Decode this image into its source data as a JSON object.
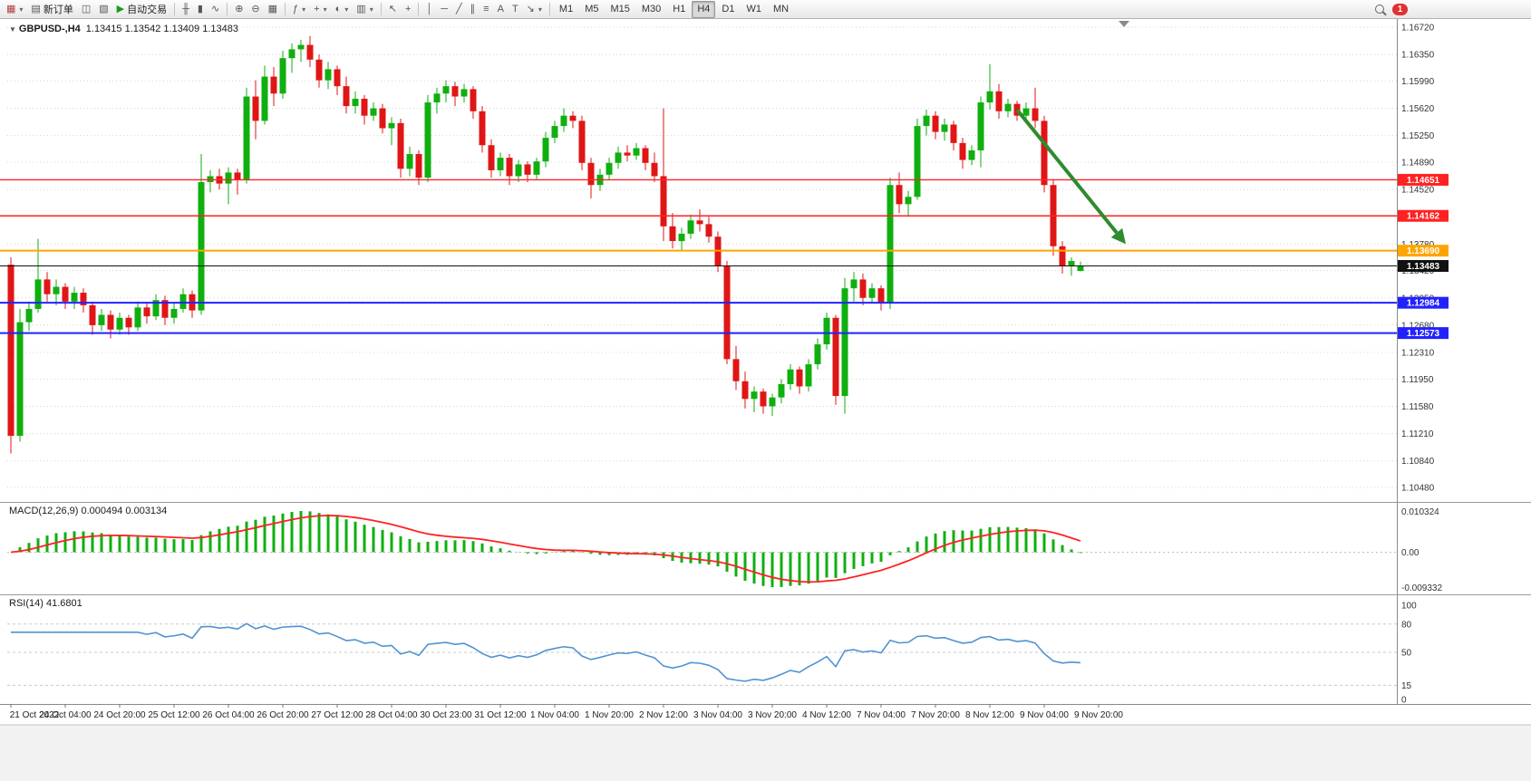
{
  "toolbar": {
    "buttons": [
      {
        "name": "new-chart",
        "glyph": "▦",
        "glyph_color": "#b04040",
        "dropdown": true
      },
      {
        "name": "new-order",
        "glyph": "▤",
        "label": "新订单"
      },
      {
        "name": "charts-list",
        "glyph": "◫"
      },
      {
        "name": "profiles",
        "glyph": "▧"
      },
      {
        "name": "auto-trading",
        "glyph": "▶",
        "glyph_color": "#1a9a1a",
        "label": "自动交易"
      },
      {
        "sep": true
      },
      {
        "name": "bar-chart-type",
        "glyph": "╫"
      },
      {
        "name": "candlestick-type",
        "glyph": "▮"
      },
      {
        "name": "line-chart-type",
        "glyph": "∿"
      },
      {
        "sep": true
      },
      {
        "name": "zoom-in",
        "glyph": "⊕"
      },
      {
        "name": "zoom-out",
        "glyph": "⊖"
      },
      {
        "name": "tile-windows",
        "glyph": "▦"
      },
      {
        "sep": true
      },
      {
        "name": "indicators",
        "glyph": "ƒ",
        "dropdown": true
      },
      {
        "name": "add-indicator",
        "glyph": "+",
        "dropdown": true
      },
      {
        "name": "periods",
        "glyph": "◐",
        "dropdown": true
      },
      {
        "name": "templates",
        "glyph": "▥",
        "dropdown": true
      },
      {
        "sep": true
      },
      {
        "name": "cursor",
        "glyph": "↖"
      },
      {
        "name": "crosshair",
        "glyph": "+"
      },
      {
        "sep": true
      },
      {
        "name": "vertical-line-tool",
        "glyph": "│"
      },
      {
        "name": "horizontal-line-tool",
        "glyph": "─"
      },
      {
        "name": "trendline-tool",
        "glyph": "╱"
      },
      {
        "name": "channel-tool",
        "glyph": "∥"
      },
      {
        "name": "fibonacci-tool",
        "glyph": "≡"
      },
      {
        "name": "text-tool",
        "glyph": "A"
      },
      {
        "name": "label-tool",
        "glyph": "T"
      },
      {
        "name": "arrows-tool",
        "glyph": "↘",
        "dropdown": true
      },
      {
        "sep": true
      }
    ],
    "timeframes": [
      "M1",
      "M5",
      "M15",
      "M30",
      "H1",
      "H4",
      "D1",
      "W1",
      "MN"
    ],
    "active_timeframe": "H4",
    "notification_badge": "1"
  },
  "chart": {
    "symbol_label": "GBPUSD-,H4",
    "ohlc_label": "1.13415 1.13542 1.13409 1.13483"
  },
  "colors": {
    "bull": "#0faf0f",
    "bear": "#e01616",
    "grid": "#d4d4d4",
    "price_line": "#111111",
    "macd_hist": "#0faf0f",
    "macd_signal": "#ff2222",
    "rsi_line": "#4f93d2",
    "arrow": "#2e8b2e"
  },
  "price_scale": [
    "1.16720",
    "1.16350",
    "1.15990",
    "1.15620",
    "1.15250",
    "1.14890",
    "1.14520",
    "1.14160",
    "1.13780",
    "1.13420",
    "1.13050",
    "1.12680",
    "1.12310",
    "1.11950",
    "1.11580",
    "1.11210",
    "1.10840",
    "1.10480"
  ],
  "levels": [
    {
      "name": "resistance-line-1",
      "price": 1.14651,
      "label": "1.14651",
      "color": "#ff2222",
      "width": 1.4
    },
    {
      "name": "resistance-line-2",
      "price": 1.14162,
      "label": "1.14162",
      "color": "#ff2222",
      "width": 1.4
    },
    {
      "name": "pivot-line",
      "price": 1.1369,
      "label": "1.13690",
      "color": "#ffa500",
      "width": 2
    },
    {
      "name": "current-price-line",
      "price": 1.13483,
      "label": "1.13483",
      "color": "#111111",
      "width": 1
    },
    {
      "name": "support-line-1",
      "price": 1.12984,
      "label": "1.12984",
      "color": "#2222ff",
      "width": 2
    },
    {
      "name": "support-line-2",
      "price": 1.12573,
      "label": "1.12573",
      "color": "#2222ff",
      "width": 2
    }
  ],
  "arrow_annotation": {
    "from_index": 111,
    "from_price": 1.156,
    "to_index": 123,
    "to_price": 1.1378
  },
  "macd_panel": {
    "label": "MACD(12,26,9) 0.000494 0.003134",
    "scale_top": "0.010324",
    "scale_mid": "0.00",
    "scale_bottom": "-0.009332",
    "params": [
      12,
      26,
      9
    ]
  },
  "rsi_panel": {
    "label": "RSI(14) 41.6801",
    "scale": [
      "100",
      "80",
      "50",
      "15",
      "0"
    ],
    "levels": [
      80,
      50,
      15
    ],
    "params": [
      14
    ]
  },
  "time_axis": [
    "21 Oct 2022",
    "24 Oct 04:00",
    "24 Oct 20:00",
    "25 Oct 12:00",
    "26 Oct 04:00",
    "26 Oct 20:00",
    "27 Oct 12:00",
    "28 Oct 04:00",
    "30 Oct 23:00",
    "31 Oct 12:00",
    "1 Nov 04:00",
    "1 Nov 20:00",
    "2 Nov 12:00",
    "3 Nov 04:00",
    "3 Nov 20:00",
    "4 Nov 12:00",
    "7 Nov 04:00",
    "7 Nov 20:00",
    "8 Nov 12:00",
    "9 Nov 04:00",
    "9 Nov 20:00"
  ],
  "chart_data": {
    "type": "candlestick",
    "symbol": "GBPUSD",
    "timeframe": "H4",
    "indicators": [
      {
        "name": "MACD",
        "params": [
          12,
          26,
          9
        ]
      },
      {
        "name": "RSI",
        "params": [
          14
        ]
      }
    ],
    "candles": [
      [
        1.135,
        1.136,
        1.1094,
        1.1118
      ],
      [
        1.1118,
        1.129,
        1.111,
        1.1272
      ],
      [
        1.1272,
        1.13,
        1.126,
        1.129
      ],
      [
        1.129,
        1.1385,
        1.1285,
        1.133
      ],
      [
        1.133,
        1.134,
        1.13,
        1.131
      ],
      [
        1.131,
        1.133,
        1.1295,
        1.132
      ],
      [
        1.132,
        1.1325,
        1.129,
        1.13
      ],
      [
        1.13,
        1.132,
        1.129,
        1.1312
      ],
      [
        1.1312,
        1.1318,
        1.1285,
        1.1295
      ],
      [
        1.1295,
        1.13,
        1.1255,
        1.1268
      ],
      [
        1.1268,
        1.129,
        1.126,
        1.1282
      ],
      [
        1.1282,
        1.1288,
        1.125,
        1.1262
      ],
      [
        1.1262,
        1.1285,
        1.1255,
        1.1278
      ],
      [
        1.1278,
        1.1282,
        1.1255,
        1.1265
      ],
      [
        1.1265,
        1.13,
        1.126,
        1.1292
      ],
      [
        1.1292,
        1.1298,
        1.127,
        1.128
      ],
      [
        1.128,
        1.131,
        1.1275,
        1.1302
      ],
      [
        1.1302,
        1.1308,
        1.1268,
        1.1278
      ],
      [
        1.1278,
        1.1298,
        1.127,
        1.129
      ],
      [
        1.129,
        1.1318,
        1.1285,
        1.131
      ],
      [
        1.131,
        1.1315,
        1.1278,
        1.1288
      ],
      [
        1.1288,
        1.15,
        1.1282,
        1.1462
      ],
      [
        1.1462,
        1.1478,
        1.1448,
        1.147
      ],
      [
        1.147,
        1.148,
        1.1452,
        1.146
      ],
      [
        1.146,
        1.1482,
        1.1432,
        1.1475
      ],
      [
        1.1475,
        1.148,
        1.1445,
        1.1465
      ],
      [
        1.1465,
        1.159,
        1.146,
        1.1578
      ],
      [
        1.1578,
        1.16,
        1.152,
        1.1545
      ],
      [
        1.1545,
        1.162,
        1.154,
        1.1605
      ],
      [
        1.1605,
        1.1618,
        1.1565,
        1.1582
      ],
      [
        1.1582,
        1.164,
        1.1575,
        1.163
      ],
      [
        1.163,
        1.165,
        1.161,
        1.1642
      ],
      [
        1.1642,
        1.1655,
        1.1625,
        1.1648
      ],
      [
        1.1648,
        1.166,
        1.1618,
        1.1628
      ],
      [
        1.1628,
        1.1635,
        1.159,
        1.16
      ],
      [
        1.16,
        1.1625,
        1.1588,
        1.1615
      ],
      [
        1.1615,
        1.162,
        1.158,
        1.1592
      ],
      [
        1.1592,
        1.1605,
        1.1555,
        1.1565
      ],
      [
        1.1565,
        1.1585,
        1.1555,
        1.1575
      ],
      [
        1.1575,
        1.158,
        1.154,
        1.1552
      ],
      [
        1.1552,
        1.157,
        1.1545,
        1.1562
      ],
      [
        1.1562,
        1.1568,
        1.1528,
        1.1535
      ],
      [
        1.1535,
        1.155,
        1.1512,
        1.1542
      ],
      [
        1.1542,
        1.1548,
        1.1468,
        1.148
      ],
      [
        1.148,
        1.151,
        1.147,
        1.15
      ],
      [
        1.15,
        1.1505,
        1.1458,
        1.1468
      ],
      [
        1.1468,
        1.158,
        1.1462,
        1.157
      ],
      [
        1.157,
        1.159,
        1.1555,
        1.1582
      ],
      [
        1.1582,
        1.16,
        1.157,
        1.1592
      ],
      [
        1.1592,
        1.1598,
        1.1565,
        1.1578
      ],
      [
        1.1578,
        1.1595,
        1.157,
        1.1588
      ],
      [
        1.1588,
        1.1592,
        1.1548,
        1.1558
      ],
      [
        1.1558,
        1.1565,
        1.1502,
        1.1512
      ],
      [
        1.1512,
        1.152,
        1.1468,
        1.1478
      ],
      [
        1.1478,
        1.1502,
        1.147,
        1.1495
      ],
      [
        1.1495,
        1.15,
        1.1458,
        1.147
      ],
      [
        1.147,
        1.1492,
        1.1462,
        1.1486
      ],
      [
        1.1486,
        1.149,
        1.1462,
        1.1472
      ],
      [
        1.1472,
        1.1495,
        1.1465,
        1.149
      ],
      [
        1.149,
        1.153,
        1.1482,
        1.1522
      ],
      [
        1.1522,
        1.1545,
        1.1515,
        1.1538
      ],
      [
        1.1538,
        1.1562,
        1.153,
        1.1552
      ],
      [
        1.1552,
        1.1558,
        1.1535,
        1.1545
      ],
      [
        1.1545,
        1.1552,
        1.1478,
        1.1488
      ],
      [
        1.1488,
        1.1495,
        1.144,
        1.1458
      ],
      [
        1.1458,
        1.148,
        1.145,
        1.1472
      ],
      [
        1.1472,
        1.1495,
        1.1465,
        1.1488
      ],
      [
        1.1488,
        1.151,
        1.148,
        1.1502
      ],
      [
        1.1502,
        1.1512,
        1.149,
        1.1498
      ],
      [
        1.1498,
        1.1515,
        1.1492,
        1.1508
      ],
      [
        1.1508,
        1.1512,
        1.1478,
        1.1488
      ],
      [
        1.1488,
        1.1502,
        1.1462,
        1.147
      ],
      [
        1.147,
        1.1562,
        1.1382,
        1.1402
      ],
      [
        1.1402,
        1.142,
        1.1372,
        1.1382
      ],
      [
        1.1382,
        1.14,
        1.137,
        1.1392
      ],
      [
        1.1392,
        1.1418,
        1.1385,
        1.141
      ],
      [
        1.141,
        1.1425,
        1.1395,
        1.1405
      ],
      [
        1.1405,
        1.1415,
        1.138,
        1.1388
      ],
      [
        1.1388,
        1.1395,
        1.134,
        1.1348
      ],
      [
        1.1348,
        1.1355,
        1.1215,
        1.1222
      ],
      [
        1.1222,
        1.124,
        1.118,
        1.1192
      ],
      [
        1.1192,
        1.1205,
        1.1155,
        1.1168
      ],
      [
        1.1168,
        1.1185,
        1.115,
        1.1178
      ],
      [
        1.1178,
        1.1182,
        1.1148,
        1.1158
      ],
      [
        1.1158,
        1.1175,
        1.1145,
        1.117
      ],
      [
        1.117,
        1.1195,
        1.1162,
        1.1188
      ],
      [
        1.1188,
        1.1215,
        1.118,
        1.1208
      ],
      [
        1.1208,
        1.1212,
        1.1175,
        1.1185
      ],
      [
        1.1185,
        1.1222,
        1.1178,
        1.1215
      ],
      [
        1.1215,
        1.125,
        1.1208,
        1.1242
      ],
      [
        1.1242,
        1.1285,
        1.1235,
        1.1278
      ],
      [
        1.1278,
        1.1282,
        1.116,
        1.1172
      ],
      [
        1.1172,
        1.1332,
        1.1148,
        1.1318
      ],
      [
        1.1318,
        1.134,
        1.13,
        1.133
      ],
      [
        1.133,
        1.1338,
        1.1295,
        1.1305
      ],
      [
        1.1305,
        1.1325,
        1.1298,
        1.1318
      ],
      [
        1.1318,
        1.1322,
        1.1288,
        1.1298
      ],
      [
        1.1298,
        1.1468,
        1.129,
        1.1458
      ],
      [
        1.1458,
        1.1475,
        1.142,
        1.1432
      ],
      [
        1.1432,
        1.145,
        1.1415,
        1.1442
      ],
      [
        1.1442,
        1.1548,
        1.1438,
        1.1538
      ],
      [
        1.1538,
        1.156,
        1.1525,
        1.1552
      ],
      [
        1.1552,
        1.1558,
        1.152,
        1.153
      ],
      [
        1.153,
        1.1548,
        1.1518,
        1.154
      ],
      [
        1.154,
        1.1545,
        1.1505,
        1.1515
      ],
      [
        1.1515,
        1.1522,
        1.148,
        1.1492
      ],
      [
        1.1492,
        1.1512,
        1.1485,
        1.1505
      ],
      [
        1.1505,
        1.1578,
        1.1482,
        1.157
      ],
      [
        1.157,
        1.1622,
        1.156,
        1.1585
      ],
      [
        1.1585,
        1.1595,
        1.1548,
        1.1558
      ],
      [
        1.1558,
        1.1575,
        1.155,
        1.1568
      ],
      [
        1.1568,
        1.1572,
        1.1545,
        1.1552
      ],
      [
        1.1552,
        1.157,
        1.1548,
        1.1562
      ],
      [
        1.1562,
        1.159,
        1.1535,
        1.1545
      ],
      [
        1.1545,
        1.1552,
        1.1448,
        1.1458
      ],
      [
        1.1458,
        1.1465,
        1.1362,
        1.1375
      ],
      [
        1.1375,
        1.1382,
        1.1338,
        1.1348
      ],
      [
        1.1348,
        1.136,
        1.1335,
        1.1355
      ],
      [
        1.13415,
        1.13542,
        1.13409,
        1.13483
      ]
    ]
  }
}
